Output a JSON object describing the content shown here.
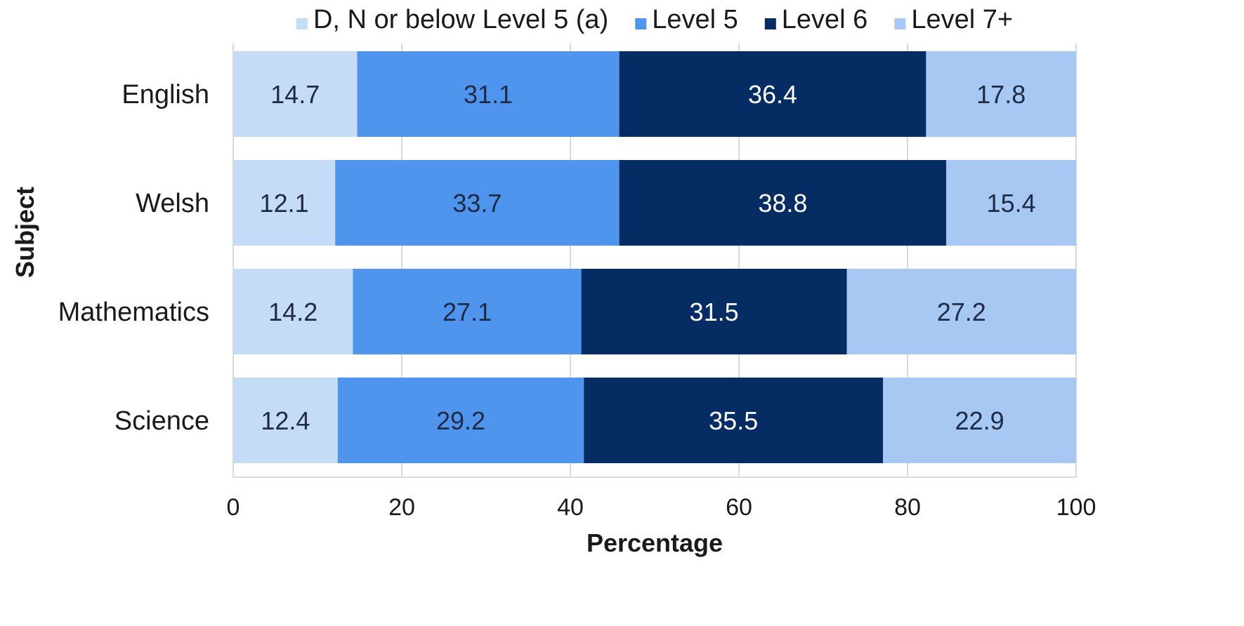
{
  "chart_data": {
    "type": "bar",
    "orientation": "horizontal",
    "stacked": true,
    "title": "",
    "xlabel": "Percentage",
    "ylabel": "Subject",
    "xlim": [
      0,
      100
    ],
    "x_ticks": [
      0,
      20,
      40,
      60,
      80,
      100
    ],
    "grid": true,
    "legend_position": "top",
    "categories": [
      "English",
      "Welsh",
      "Mathematics",
      "Science"
    ],
    "series": [
      {
        "name": "D, N or below Level 5 (a)",
        "color": "#c5dcf7",
        "label_color": "#1f2a44",
        "values": [
          14.7,
          12.1,
          14.2,
          12.4
        ]
      },
      {
        "name": "Level 5",
        "color": "#4f95ee",
        "label_color": "#1f2a44",
        "values": [
          31.1,
          33.7,
          27.1,
          29.2
        ]
      },
      {
        "name": "Level 6",
        "color": "#062c64",
        "label_color": "#ffffff",
        "values": [
          36.4,
          38.8,
          31.5,
          35.5
        ]
      },
      {
        "name": "Level 7+",
        "color": "#a6c8f3",
        "label_color": "#1f2a44",
        "values": [
          17.8,
          15.4,
          27.2,
          22.9
        ]
      }
    ]
  }
}
